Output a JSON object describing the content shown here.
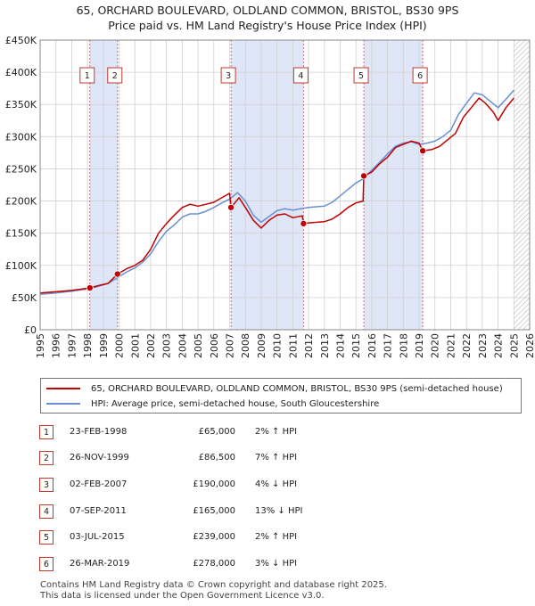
{
  "header": {
    "title_line1": "65, ORCHARD BOULEVARD, OLDLAND COMMON, BRISTOL, BS30 9PS",
    "title_line2": "Price paid vs. HM Land Registry's House Price Index (HPI)"
  },
  "colors": {
    "price_line": "#c00000",
    "hpi_line": "#6a8fd0",
    "shade": "#dfe6f7",
    "grid": "#d0d0d0",
    "marker": "#c00000"
  },
  "legend": {
    "series1": "65, ORCHARD BOULEVARD, OLDLAND COMMON, BRISTOL, BS30 9PS (semi-detached house)",
    "series2": "HPI: Average price, semi-detached house, South Gloucestershire"
  },
  "transactions": [
    {
      "num": "1",
      "date": "23-FEB-1998",
      "price": "£65,000",
      "hpi": "2% ↑ HPI"
    },
    {
      "num": "2",
      "date": "26-NOV-1999",
      "price": "£86,500",
      "hpi": "7% ↑ HPI"
    },
    {
      "num": "3",
      "date": "02-FEB-2007",
      "price": "£190,000",
      "hpi": "4% ↓ HPI"
    },
    {
      "num": "4",
      "date": "07-SEP-2011",
      "price": "£165,000",
      "hpi": "13% ↓ HPI"
    },
    {
      "num": "5",
      "date": "03-JUL-2015",
      "price": "£239,000",
      "hpi": "2% ↑ HPI"
    },
    {
      "num": "6",
      "date": "26-MAR-2019",
      "price": "£278,000",
      "hpi": "3% ↓ HPI"
    }
  ],
  "footer": {
    "line1": "Contains HM Land Registry data © Crown copyright and database right 2025.",
    "line2": "This data is licensed under the Open Government Licence v3.0."
  },
  "chart_data": {
    "type": "line",
    "xlim": [
      1995,
      2026
    ],
    "ylim": [
      0,
      450000
    ],
    "yticks": [
      0,
      50000,
      100000,
      150000,
      200000,
      250000,
      300000,
      350000,
      400000,
      450000
    ],
    "ytick_labels": [
      "£0",
      "£50K",
      "£100K",
      "£150K",
      "£200K",
      "£250K",
      "£300K",
      "£350K",
      "£400K",
      "£450K"
    ],
    "xticks": [
      1995,
      1996,
      1997,
      1998,
      1999,
      2000,
      2001,
      2002,
      2003,
      2004,
      2005,
      2006,
      2007,
      2008,
      2009,
      2010,
      2011,
      2012,
      2013,
      2014,
      2015,
      2016,
      2017,
      2018,
      2019,
      2020,
      2021,
      2022,
      2023,
      2024,
      2025,
      2026
    ],
    "xtick_labels": [
      "1995",
      "1996",
      "1997",
      "1998",
      "1999",
      "2000",
      "2001",
      "2002",
      "2003",
      "2004",
      "2005",
      "2006",
      "2007",
      "2008",
      "2009",
      "2010",
      "2011",
      "2012",
      "2013",
      "2014",
      "2015",
      "2016",
      "2017",
      "2018",
      "2019",
      "2020",
      "2021",
      "2022",
      "2023",
      "2024",
      "2025",
      "2026"
    ],
    "grid": true,
    "shaded_ranges": [
      [
        1998.15,
        1999.9
      ],
      [
        2007.09,
        2011.68
      ],
      [
        2015.5,
        2019.23
      ]
    ],
    "hatched_from": 2025.0,
    "sales": [
      {
        "label": "1",
        "x": 1998.15,
        "y": 65000
      },
      {
        "label": "2",
        "x": 1999.9,
        "y": 86500
      },
      {
        "label": "3",
        "x": 2007.09,
        "y": 190000
      },
      {
        "label": "4",
        "x": 2011.68,
        "y": 165000
      },
      {
        "label": "5",
        "x": 2015.5,
        "y": 239000
      },
      {
        "label": "6",
        "x": 2019.23,
        "y": 278000
      }
    ],
    "series": [
      {
        "name": "65, ORCHARD BOULEVARD, OLDLAND COMMON, BRISTOL, BS30 9PS (semi-detached house)",
        "x": [
          1995.0,
          1996.0,
          1997.0,
          1998.15,
          1998.6,
          1999.3,
          1999.9,
          2000.5,
          2001.0,
          2001.5,
          2002.0,
          2002.5,
          2003.0,
          2003.5,
          2004.0,
          2004.5,
          2005.0,
          2005.5,
          2006.0,
          2006.5,
          2007.0,
          2007.09,
          2007.6,
          2008.0,
          2008.5,
          2009.0,
          2009.5,
          2010.0,
          2010.5,
          2011.0,
          2011.6,
          2011.68,
          2012.0,
          2013.0,
          2013.5,
          2014.0,
          2014.5,
          2015.0,
          2015.45,
          2015.5,
          2016.0,
          2016.5,
          2017.0,
          2017.5,
          2018.0,
          2018.5,
          2019.0,
          2019.23,
          2019.8,
          2020.3,
          2020.8,
          2021.3,
          2021.8,
          2022.3,
          2022.8,
          2023.2,
          2023.7,
          2024.0,
          2024.5,
          2025.0
        ],
        "y": [
          57000,
          59000,
          61000,
          65000,
          68000,
          72000,
          86500,
          95000,
          100000,
          108000,
          125000,
          150000,
          165000,
          178000,
          190000,
          195000,
          192000,
          195000,
          198000,
          205000,
          212000,
          190000,
          205000,
          190000,
          170000,
          158000,
          170000,
          178000,
          180000,
          174000,
          177000,
          165000,
          166000,
          168000,
          172000,
          180000,
          190000,
          197000,
          200000,
          239000,
          245000,
          258000,
          268000,
          283000,
          288000,
          293000,
          290000,
          278000,
          280000,
          285000,
          295000,
          305000,
          330000,
          345000,
          360000,
          352000,
          338000,
          325000,
          345000,
          360000
        ]
      },
      {
        "name": "HPI: Average price, semi-detached house, South Gloucestershire",
        "x": [
          1995.0,
          1996.0,
          1997.0,
          1998.15,
          1998.6,
          1999.3,
          1999.9,
          2000.5,
          2001.0,
          2001.5,
          2002.0,
          2002.5,
          2003.0,
          2003.5,
          2004.0,
          2004.5,
          2005.0,
          2005.5,
          2006.0,
          2006.5,
          2007.0,
          2007.5,
          2008.0,
          2008.5,
          2009.0,
          2009.5,
          2010.0,
          2010.5,
          2011.0,
          2011.5,
          2012.0,
          2013.0,
          2013.5,
          2014.0,
          2014.5,
          2015.0,
          2015.5,
          2016.0,
          2016.5,
          2017.0,
          2017.5,
          2018.0,
          2018.5,
          2019.0,
          2019.5,
          2020.0,
          2020.5,
          2021.0,
          2021.5,
          2022.0,
          2022.5,
          2023.0,
          2023.5,
          2024.0,
          2024.5,
          2025.0
        ],
        "y": [
          55000,
          57000,
          60000,
          64000,
          67000,
          72000,
          81000,
          90000,
          96000,
          105000,
          118000,
          137000,
          153000,
          163000,
          175000,
          180000,
          180000,
          184000,
          190000,
          197000,
          203000,
          213000,
          200000,
          178000,
          167000,
          176000,
          185000,
          188000,
          186000,
          188000,
          190000,
          192000,
          198000,
          208000,
          218000,
          228000,
          235000,
          248000,
          260000,
          273000,
          285000,
          290000,
          292000,
          288000,
          290000,
          293000,
          300000,
          310000,
          335000,
          352000,
          368000,
          365000,
          355000,
          345000,
          358000,
          372000
        ]
      }
    ]
  }
}
